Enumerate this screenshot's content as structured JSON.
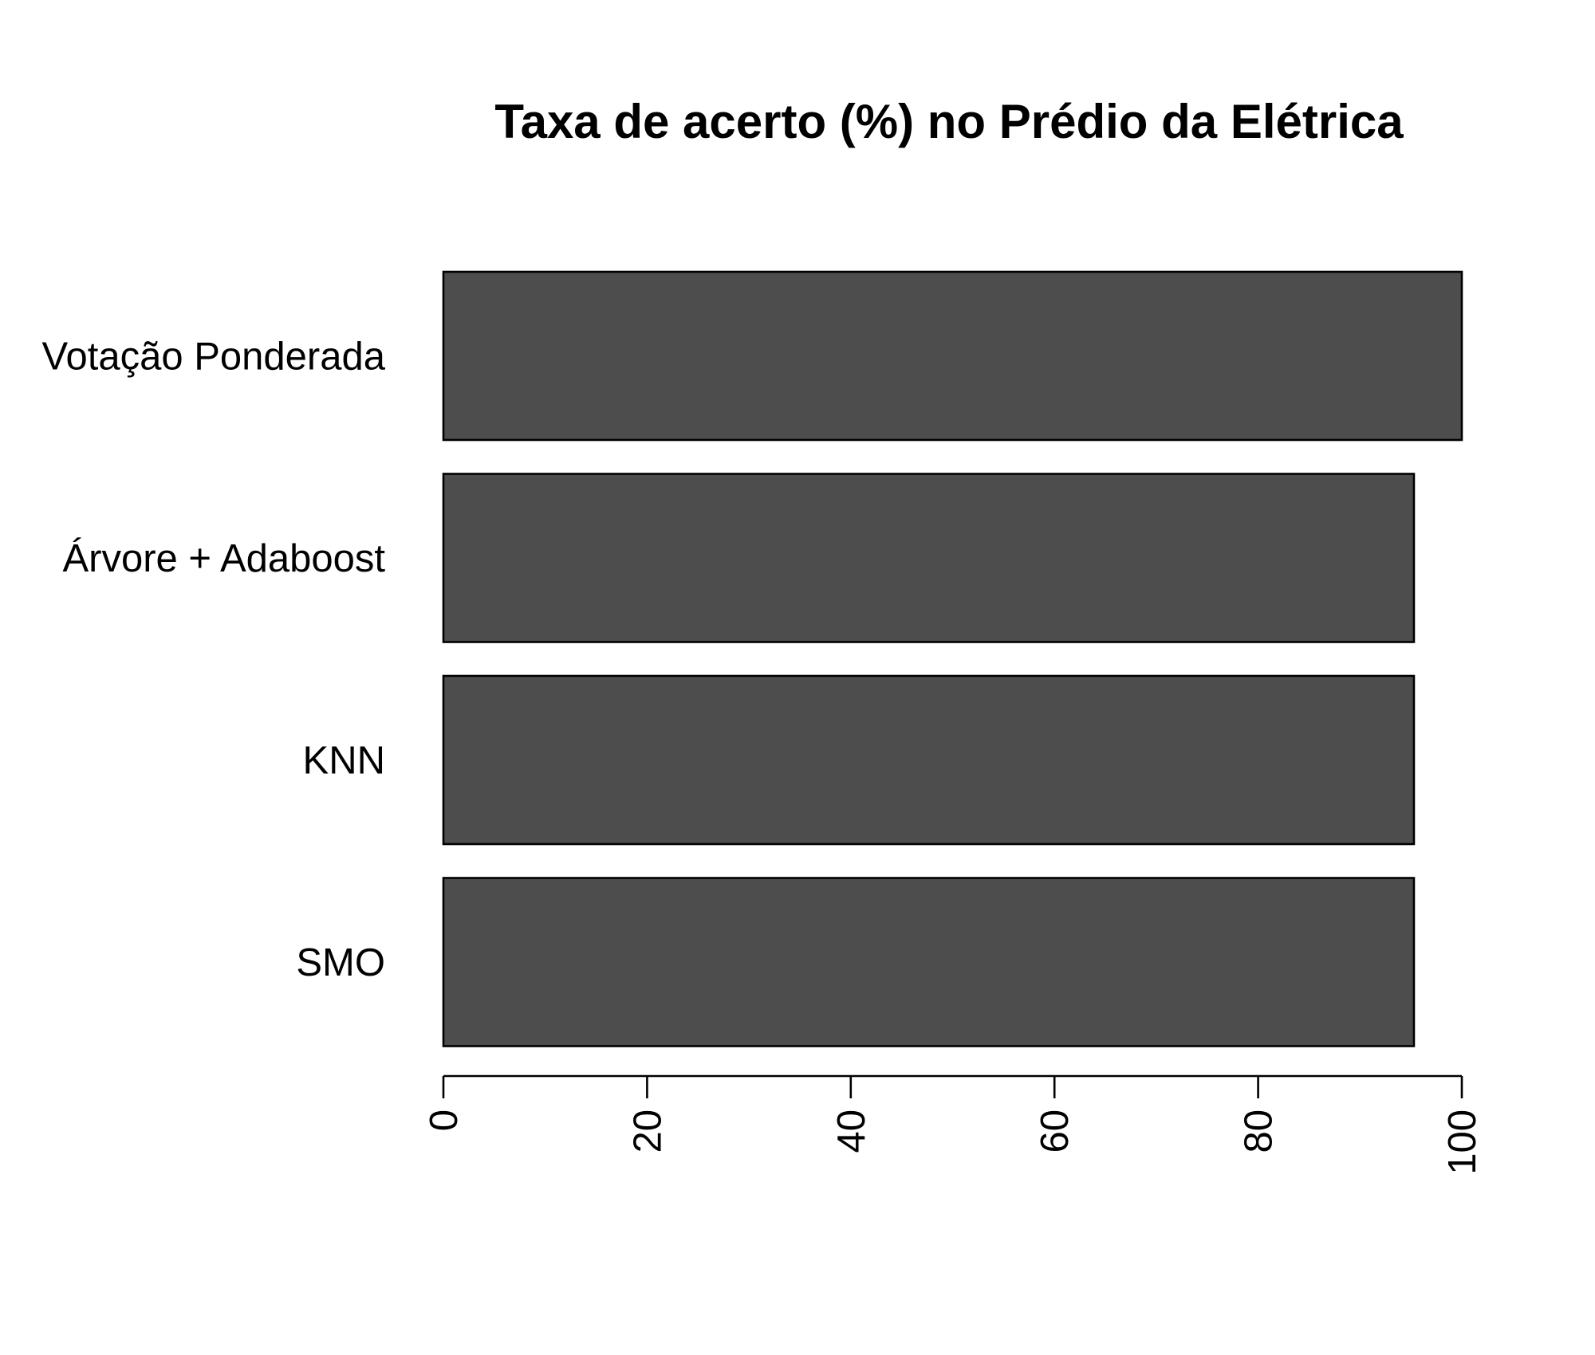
{
  "chart_data": {
    "type": "bar",
    "orientation": "horizontal",
    "title": "Taxa de acerto (%) no Prédio da Elétrica",
    "xlabel": "",
    "ylabel": "",
    "categories": [
      "Votação Ponderada",
      "Árvore + Adaboost",
      "KNN",
      "SMO"
    ],
    "values": [
      100,
      95.3,
      95.3,
      95.3
    ],
    "xlim": [
      0,
      100
    ],
    "xticks": [
      "0",
      "20",
      "40",
      "60",
      "80",
      "100"
    ],
    "tick_label_rotation": "vertical",
    "grid": false,
    "legend": "none",
    "bar_color": "#4d4d4d",
    "border_color": "#000000"
  }
}
